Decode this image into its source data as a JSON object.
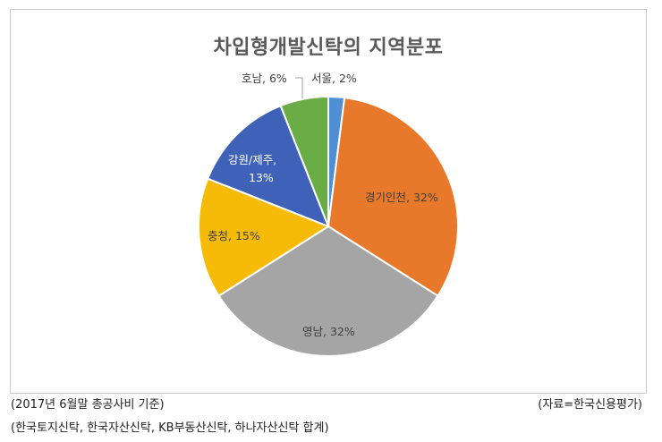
{
  "chart_data": {
    "type": "pie",
    "title": "차입형개발신탁의 지역분포",
    "slices": [
      {
        "name": "서울",
        "value": 2,
        "label": "서울, 2%",
        "color": "#4f8fd4"
      },
      {
        "name": "경기인천",
        "value": 32,
        "label": "경기인천, 32%",
        "color": "#e8792a"
      },
      {
        "name": "영남",
        "value": 32,
        "label": "영남, 32%",
        "color": "#a5a5a5"
      },
      {
        "name": "충청",
        "value": 15,
        "label": "충청, 15%",
        "color": "#f5bb08"
      },
      {
        "name": "강원/제주",
        "value": 13,
        "label_line1": "강원/제주,",
        "label_line2": "13%",
        "color": "#3f62b8"
      },
      {
        "name": "호남",
        "value": 6,
        "label": "호남, 6%",
        "color": "#6aac46"
      }
    ],
    "legend": "none",
    "grid": false
  },
  "footer": {
    "note_left": "(2017년 6월말 총공사비 기준)",
    "source": "(자료=한국신용평가)",
    "note_companies": "(한국토지신탁, 한국자산신탁, KB부동산신탁, 하나자산신탁 합계)"
  }
}
